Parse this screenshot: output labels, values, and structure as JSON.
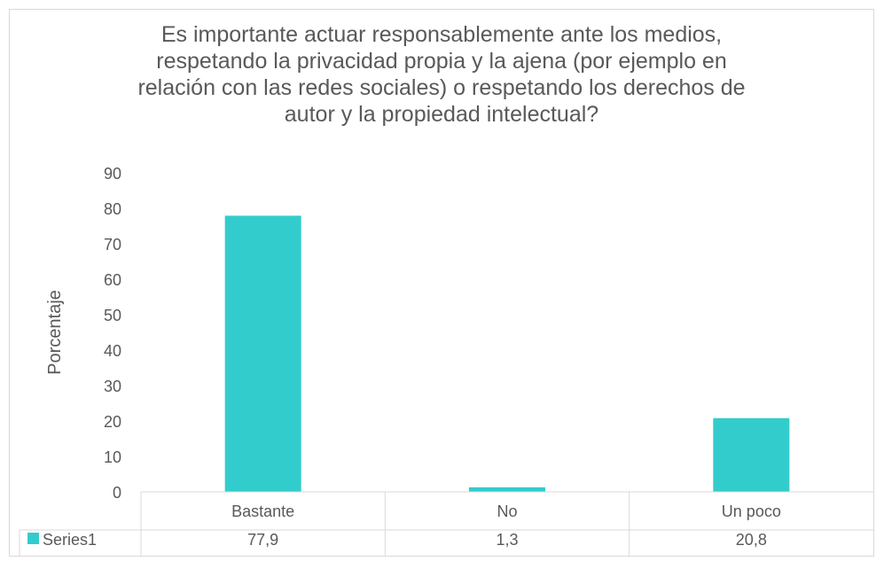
{
  "chart_data": {
    "type": "bar",
    "title": "Es importante actuar responsablemente ante los medios, respetando la privacidad propia y la ajena (por ejemplo en relación con las redes sociales) o respetando los derechos de autor y la propiedad intelectual?",
    "xlabel": "",
    "ylabel": "Porcentaje",
    "categories": [
      "Bastante",
      "No",
      "Un poco"
    ],
    "series": [
      {
        "name": "Series1",
        "values": [
          77.9,
          1.3,
          20.8
        ],
        "labels": [
          "77,9",
          "1,3",
          "20,8"
        ],
        "color": "#33cccc"
      }
    ],
    "ylim": [
      0,
      90
    ],
    "yticks": [
      0,
      10,
      20,
      30,
      40,
      50,
      60,
      70,
      80,
      90
    ],
    "grid": false,
    "legend": "data-table"
  }
}
